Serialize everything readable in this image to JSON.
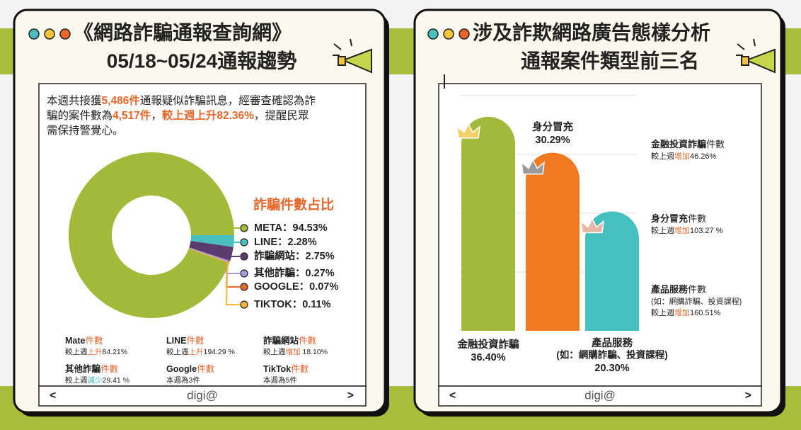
{
  "left_panel": {
    "title": [
      "《網路詐騙通報查詢網》",
      "05/18~05/24通報趨勢"
    ],
    "intro": [
      [
        {
          "text": "本週共接獲"
        },
        {
          "text": "5,486件",
          "color": "#e8662a",
          "bold": true
        },
        {
          "text": "通報疑似詐騙訊息，經審查確認為詐"
        }
      ],
      [
        {
          "text": "騙的案件數為"
        },
        {
          "text": "4,517件",
          "color": "#e8662a",
          "bold": true
        },
        {
          "text": "，"
        },
        {
          "text": "較上週上升82.36%",
          "color": "#e8662a",
          "bold": true
        },
        {
          "text": "，提醒民眾"
        }
      ],
      [
        {
          "text": "需保持警覺心。"
        }
      ]
    ],
    "stats": [
      {
        "lines": [
          [
            {
              "text": "Mate",
              "bold": true
            },
            {
              "text": "件數",
              "color": "#e8662a"
            }
          ],
          [
            {
              "text": "較上週"
            },
            {
              "text": "上升",
              "color": "#e8662a"
            },
            {
              "text": "84.21%"
            }
          ]
        ]
      },
      {
        "lines": [
          [
            {
              "text": "LINE",
              "bold": true
            },
            {
              "text": "件數",
              "color": "#e8662a"
            }
          ],
          [
            {
              "text": "較上週"
            },
            {
              "text": "上升",
              "color": "#e8662a"
            },
            {
              "text": "194.29 %"
            }
          ]
        ]
      },
      {
        "lines": [
          [
            {
              "text": "詐騙網站",
              "bold": true
            },
            {
              "text": "件數",
              "color": "#e8662a"
            }
          ],
          [
            {
              "text": "較上週"
            },
            {
              "text": "增加",
              "color": "#e8662a"
            },
            {
              "text": " 18.10%"
            }
          ]
        ]
      },
      {
        "lines": [
          [
            {
              "text": "其他詐騙",
              "bold": true
            },
            {
              "text": "件數",
              "color": "#e8662a"
            }
          ],
          [
            {
              "text": "較上週"
            },
            {
              "text": "減少",
              "color": "#2fb3b5"
            },
            {
              "text": "29.41 %"
            }
          ]
        ]
      },
      {
        "lines": [
          [
            {
              "text": "Google",
              "bold": true
            },
            {
              "text": "件數",
              "color": "#e8662a"
            }
          ],
          [
            {
              "text": "本週為3件"
            }
          ]
        ]
      },
      {
        "lines": [
          [
            {
              "text": "TikTok",
              "bold": true
            },
            {
              "text": "件數",
              "color": "#e8662a"
            }
          ],
          [
            {
              "text": "本週為5件"
            }
          ]
        ]
      }
    ],
    "brand": "digi@",
    "nav": [
      "<",
      ">"
    ]
  },
  "right_panel": {
    "title": [
      "涉及詐欺網路廣告態樣分析",
      "通報案件類型前三名"
    ],
    "notes": [
      {
        "lines": [
          [
            {
              "text": "金融投資詐騙",
              "bold": true
            },
            {
              "text": "件數"
            }
          ],
          [
            {
              "text": "較上週"
            },
            {
              "text": "增加",
              "color": "#e8662a"
            },
            {
              "text": "46.26%"
            }
          ]
        ]
      },
      {
        "lines": [
          [
            {
              "text": "身分冒充",
              "bold": true
            },
            {
              "text": "件數"
            }
          ],
          [
            {
              "text": "較上週"
            },
            {
              "text": "增加",
              "color": "#e8662a"
            },
            {
              "text": "103.27 %"
            }
          ]
        ]
      },
      {
        "lines": [
          [
            {
              "text": "產品服務",
              "bold": true
            },
            {
              "text": "件數"
            }
          ],
          [
            {
              "text": "(如：網購詐騙、投資課程)"
            }
          ],
          [
            {
              "text": "較上週"
            },
            {
              "text": "增加",
              "color": "#e8662a"
            },
            {
              "text": "160.51%"
            }
          ]
        ]
      }
    ],
    "brand": "digi@",
    "nav": [
      "<",
      ">"
    ]
  },
  "chart_data": [
    {
      "type": "pie",
      "title": "詐騙件數占比",
      "labels": [
        "META：94.53%",
        "LINE：2.28%",
        "詐騙網站：2.75%",
        "其他詐騙：0.27%",
        "GOOGLE：0.07%",
        "TIKTOK：0.11%"
      ],
      "values": [
        94.53,
        2.28,
        2.75,
        0.27,
        0.07,
        0.11
      ],
      "colors": [
        "#a3b939",
        "#4bbfc0",
        "#5a3d6e",
        "#a99be0",
        "#e8662a",
        "#f3b63a"
      ]
    },
    {
      "type": "bar",
      "categories": [
        [
          "金融投資詐騙"
        ],
        [
          "身分冒充"
        ],
        [
          "產品服務",
          "(如：網購詐騙、投資課程)"
        ]
      ],
      "values": [
        36.4,
        30.29,
        20.3
      ],
      "value_labels": [
        "36.40%",
        "30.29%",
        "20.30%"
      ],
      "colors": [
        "#a3b939",
        "#f07a22",
        "#45c0c0"
      ],
      "ylim": [
        0,
        40
      ],
      "yticks": [
        10,
        20,
        30,
        40
      ],
      "grid": true
    }
  ]
}
